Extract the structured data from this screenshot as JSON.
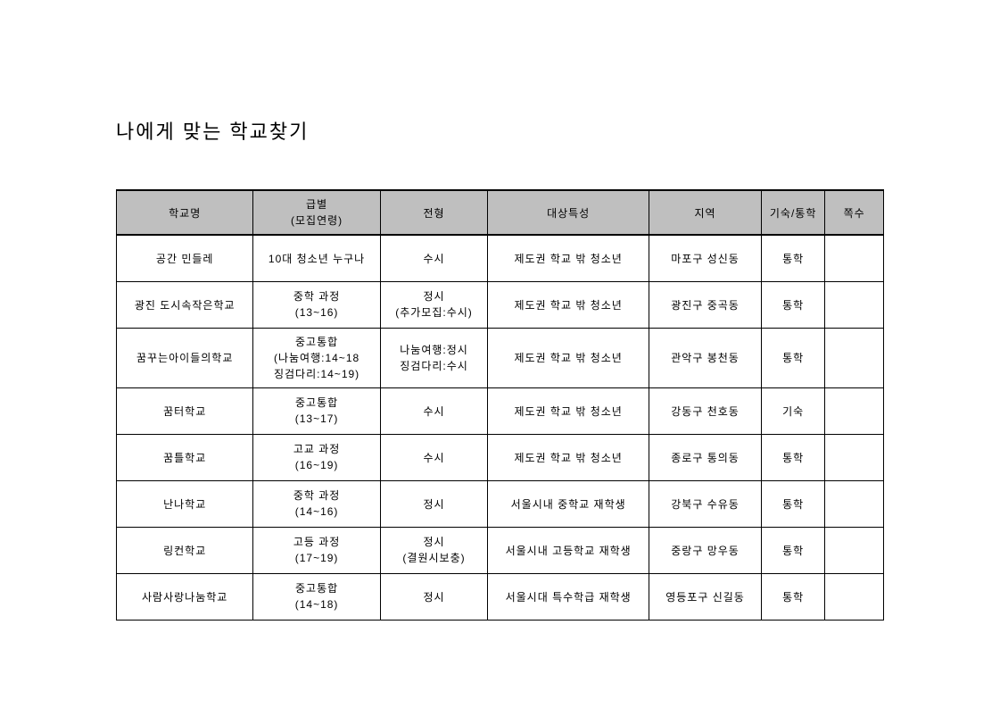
{
  "title": "나에게 맞는 학교찾기",
  "table": {
    "type": "table",
    "header_bg": "#bfbfbf",
    "border_color": "#000000",
    "text_color": "#000000",
    "font_size_header": 12,
    "font_size_body": 12,
    "columns": [
      {
        "label": "학교명",
        "width": 140
      },
      {
        "label": "급별\n(모집연령)",
        "width": 130
      },
      {
        "label": "전형",
        "width": 110
      },
      {
        "label": "대상특성",
        "width": 165
      },
      {
        "label": "지역",
        "width": 115
      },
      {
        "label": "기숙/통학",
        "width": 65
      },
      {
        "label": "쪽수",
        "width": 60
      }
    ],
    "rows": [
      {
        "name": "공간 민들레",
        "level": "10대 청소년 누구나",
        "type": "수시",
        "target": "제도권 학교 밖 청소년",
        "region": "마포구 성신동",
        "dorm": "통학",
        "page": ""
      },
      {
        "name": "광진 도시속작은학교",
        "level": "중학 과정\n(13~16)",
        "type": "정시\n(추가모집:수시)",
        "target": "제도권 학교 밖 청소년",
        "region": "광진구 중곡동",
        "dorm": "통학",
        "page": ""
      },
      {
        "name": "꿈꾸는아이들의학교",
        "level": "중고통합\n(나눔여행:14~18\n징검다리:14~19)",
        "type": "나눔여행:정시\n징검다리:수시",
        "target": "제도권 학교 밖 청소년",
        "region": "관악구 봉천동",
        "dorm": "통학",
        "page": ""
      },
      {
        "name": "꿈터학교",
        "level": "중고통합\n(13~17)",
        "type": "수시",
        "target": "제도권 학교 밖 청소년",
        "region": "강동구 천호동",
        "dorm": "기숙",
        "page": ""
      },
      {
        "name": "꿈틀학교",
        "level": "고교 과정\n(16~19)",
        "type": "수시",
        "target": "제도권 학교 밖 청소년",
        "region": "종로구 통의동",
        "dorm": "통학",
        "page": ""
      },
      {
        "name": "난나학교",
        "level": "중학 과정\n(14~16)",
        "type": "정시",
        "target": "서울시내 중학교 재학생",
        "region": "강북구 수유동",
        "dorm": "통학",
        "page": ""
      },
      {
        "name": "링컨학교",
        "level": "고등 과정\n(17~19)",
        "type": "정시\n(결원시보충)",
        "target": "서울시내 고등학교 재학생",
        "region": "중랑구 망우동",
        "dorm": "통학",
        "page": ""
      },
      {
        "name": "사람사랑나눔학교",
        "level": "중고통합\n(14~18)",
        "type": "정시",
        "target": "서울시대 특수학급 재학생",
        "region": "영등포구 신길동",
        "dorm": "통학",
        "page": ""
      }
    ]
  }
}
